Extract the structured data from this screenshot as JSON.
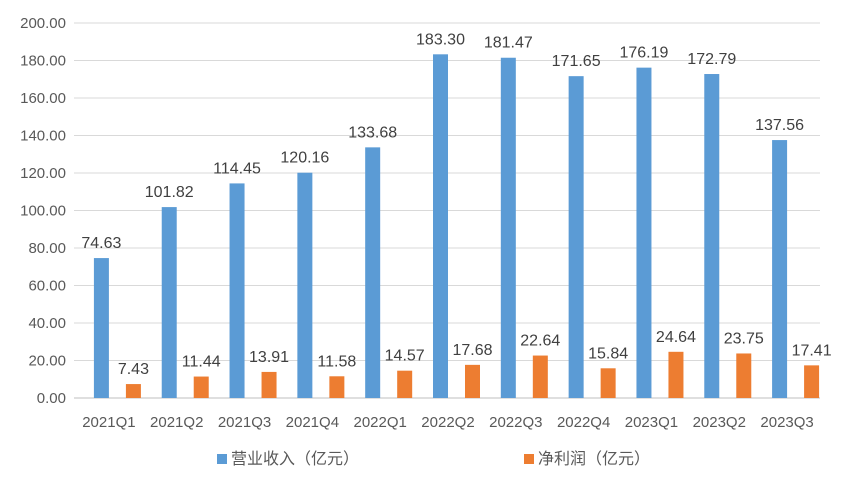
{
  "chart_data": {
    "type": "bar",
    "categories": [
      "2021Q1",
      "2021Q2",
      "2021Q3",
      "2021Q4",
      "2022Q1",
      "2022Q2",
      "2022Q3",
      "2022Q4",
      "2023Q1",
      "2023Q2",
      "2023Q3"
    ],
    "series": [
      {
        "name": "营业收入（亿元）",
        "color": "#5B9BD5",
        "values": [
          74.63,
          101.82,
          114.45,
          120.16,
          133.68,
          183.3,
          181.47,
          171.65,
          176.19,
          172.79,
          137.56
        ],
        "labels": [
          "74.63",
          "101.82",
          "114.45",
          "120.16",
          "133.68",
          "183.30",
          "181.47",
          "171.65",
          "176.19",
          "172.79",
          "137.56"
        ]
      },
      {
        "name": "净利润（亿元）",
        "color": "#ED7D31",
        "values": [
          7.43,
          11.44,
          13.91,
          11.58,
          14.57,
          17.68,
          22.64,
          15.84,
          24.64,
          23.75,
          17.41
        ],
        "labels": [
          "7.43",
          "11.44",
          "13.91",
          "11.58",
          "14.57",
          "17.68",
          "22.64",
          "15.84",
          "24.64",
          "23.75",
          "17.41"
        ]
      }
    ],
    "ylim": [
      0,
      200
    ],
    "yticks": [
      "0.00",
      "20.00",
      "40.00",
      "60.00",
      "80.00",
      "100.00",
      "120.00",
      "140.00",
      "160.00",
      "180.00",
      "200.00"
    ],
    "grid": true,
    "legend": "bottom"
  }
}
